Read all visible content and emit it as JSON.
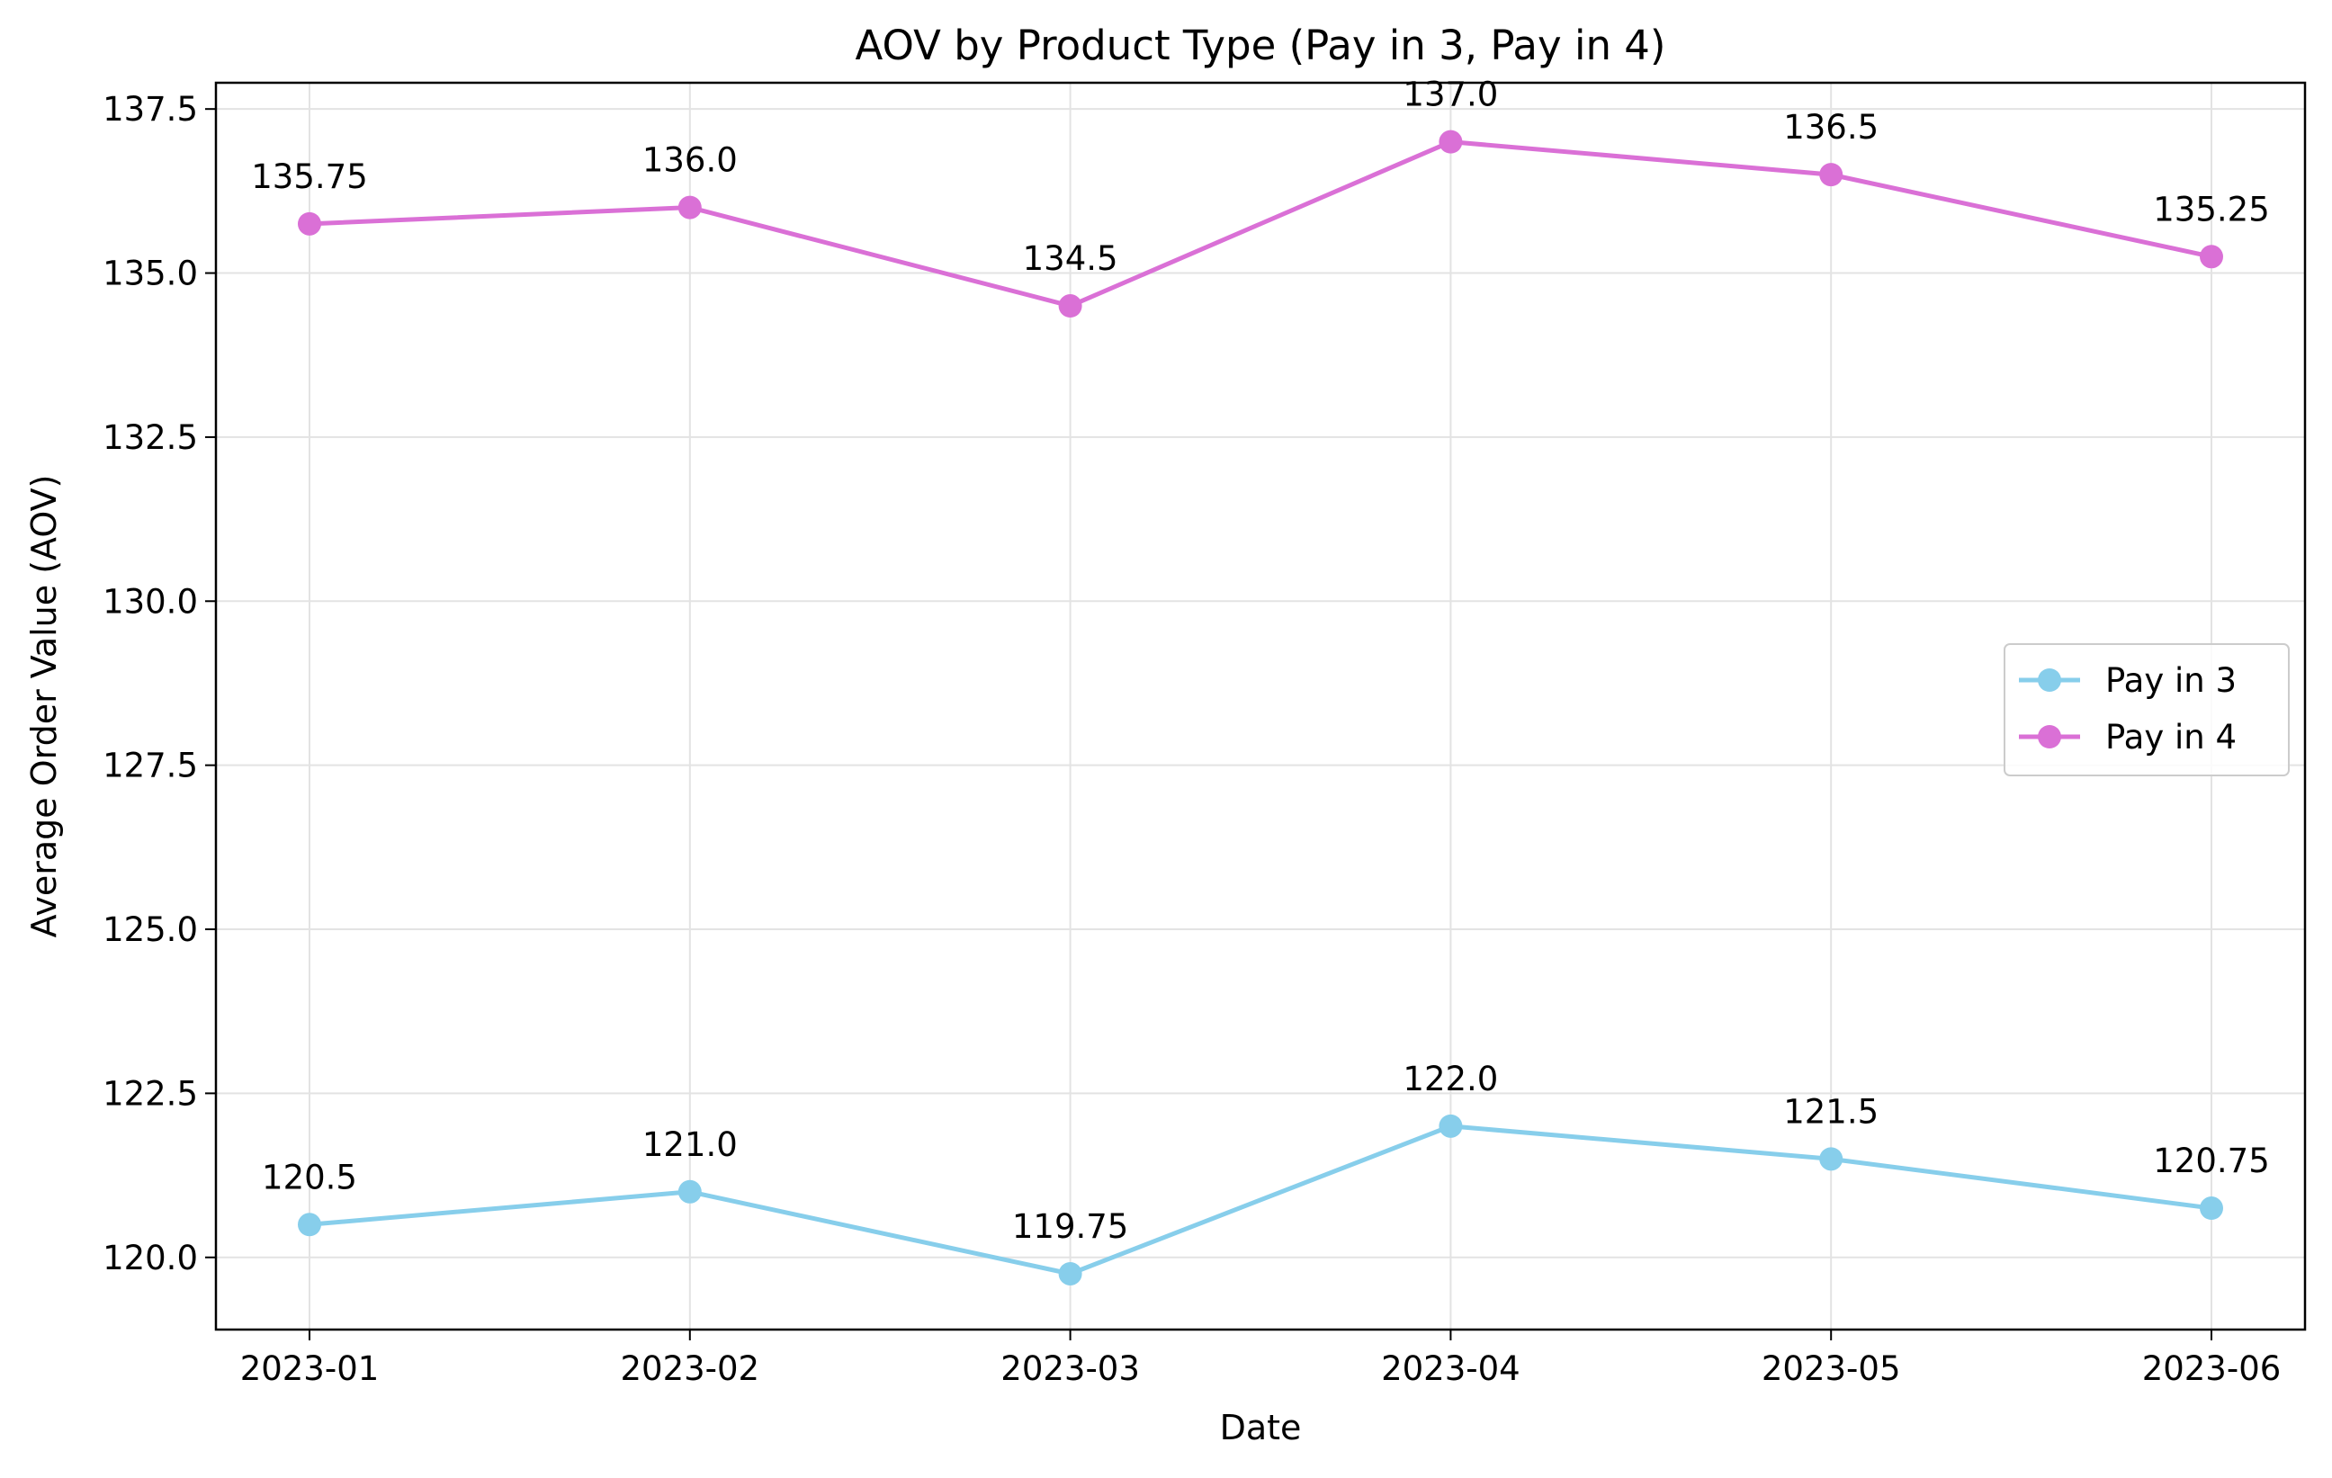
{
  "chart_data": {
    "type": "line",
    "title": "AOV by Product Type (Pay in 3, Pay in 4)",
    "xlabel": "Date",
    "ylabel": "Average Order Value (AOV)",
    "categories": [
      "2023-01",
      "2023-02",
      "2023-03",
      "2023-04",
      "2023-05",
      "2023-06"
    ],
    "ylim": [
      118.9,
      137.9
    ],
    "yticks": [
      120.0,
      122.5,
      125.0,
      127.5,
      130.0,
      132.5,
      135.0,
      137.5
    ],
    "ytick_labels": [
      "120.0",
      "122.5",
      "125.0",
      "127.5",
      "130.0",
      "132.5",
      "135.0",
      "137.5"
    ],
    "grid": true,
    "legend_position": "center-right",
    "series": [
      {
        "name": "Pay in 3",
        "color": "#87CEEB",
        "marker": "circle",
        "values": [
          120.5,
          121.0,
          119.75,
          122.0,
          121.5,
          120.75
        ],
        "labels": [
          "120.5",
          "121.0",
          "119.75",
          "122.0",
          "121.5",
          "120.75"
        ]
      },
      {
        "name": "Pay in 4",
        "color": "#DA70D6",
        "marker": "circle",
        "values": [
          135.75,
          136.0,
          134.5,
          137.0,
          136.5,
          135.25
        ],
        "labels": [
          "135.75",
          "136.0",
          "134.5",
          "137.0",
          "136.5",
          "135.25"
        ]
      }
    ]
  }
}
